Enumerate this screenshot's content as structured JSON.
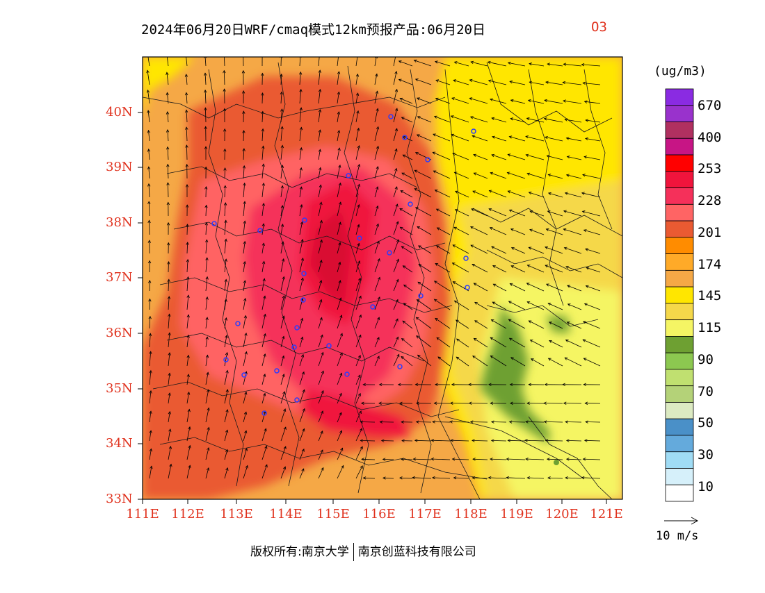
{
  "title": {
    "main": "2024年06月20日WRF/cmaq模式12km预报产品:06月20日",
    "species": "O3"
  },
  "axes": {
    "lat_labels": [
      "40N",
      "39N",
      "38N",
      "37N",
      "36N",
      "35N",
      "34N",
      "33N"
    ],
    "lon_labels": [
      "111E",
      "112E",
      "113E",
      "114E",
      "115E",
      "116E",
      "117E",
      "118E",
      "119E",
      "120E",
      "121E"
    ]
  },
  "legend": {
    "unit": "(ug/m3)",
    "colors": [
      "#8a2be2",
      "#9932cc",
      "#b03060",
      "#c71585",
      "#ff0000",
      "#f0143c",
      "#f5305a",
      "#ff6464",
      "#ea5a32",
      "#ff8c00",
      "#ffaa28",
      "#f5a846",
      "#ffe600",
      "#f5d84a",
      "#f5f564",
      "#6ea032",
      "#8cc850",
      "#c0e070",
      "#b4d278",
      "#dceac2",
      "#4a90c8",
      "#64aadc",
      "#a0dcf5",
      "#d6f0fa",
      "#ffffff"
    ],
    "labels": [
      "670",
      "400",
      "253",
      "228",
      "201",
      "174",
      "145",
      "115",
      "90",
      "70",
      "50",
      "30",
      "10"
    ]
  },
  "wind_reference": {
    "label": "10 m/s"
  },
  "copyright": {
    "left": "版权所有:南京大学",
    "right": "南京创蓝科技有限公司"
  },
  "colors": {
    "axis_label": "#e0321e",
    "station_marker": "#2a3cff"
  }
}
